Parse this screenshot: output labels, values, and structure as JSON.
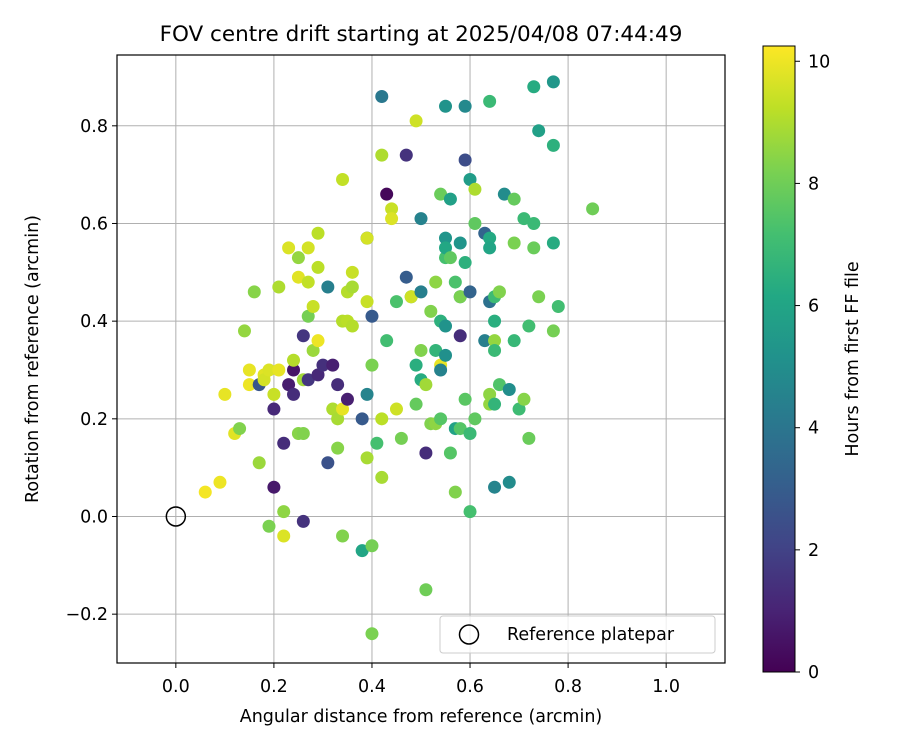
{
  "chart_data": {
    "type": "scatter",
    "title": "FOV centre drift starting at 2025/04/08 07:44:49",
    "xlabel": "Angular distance from reference (arcmin)",
    "ylabel": "Rotation from reference (arcmin)",
    "xlim": [
      -0.12,
      1.12
    ],
    "ylim": [
      -0.3,
      0.945
    ],
    "xticks": [
      0.0,
      0.2,
      0.4,
      0.6,
      0.8,
      1.0
    ],
    "xtick_labels": [
      "0.0",
      "0.2",
      "0.4",
      "0.6",
      "0.8",
      "1.0"
    ],
    "yticks": [
      -0.2,
      0.0,
      0.2,
      0.4,
      0.6,
      0.8
    ],
    "ytick_labels": [
      "−0.2",
      "0.0",
      "0.2",
      "0.4",
      "0.6",
      "0.8"
    ],
    "grid": true,
    "colormap": "viridis",
    "colorbar": {
      "label": "Hours from first FF file",
      "range": [
        0,
        10.25
      ],
      "ticks": [
        0,
        2,
        4,
        6,
        8,
        10
      ],
      "tick_labels": [
        "0",
        "2",
        "4",
        "6",
        "8",
        "10"
      ]
    },
    "legend": {
      "position": "lower-right",
      "label": "Reference platepar"
    },
    "reference_point": {
      "x": 0.0,
      "y": 0.0
    },
    "points": [
      {
        "x": 0.06,
        "y": 0.05,
        "h": 10.1
      },
      {
        "x": 0.09,
        "y": 0.07,
        "h": 10.0
      },
      {
        "x": 0.1,
        "y": 0.25,
        "h": 9.9
      },
      {
        "x": 0.12,
        "y": 0.17,
        "h": 9.8
      },
      {
        "x": 0.13,
        "y": 0.18,
        "h": 8.3
      },
      {
        "x": 0.14,
        "y": 0.38,
        "h": 8.6
      },
      {
        "x": 0.15,
        "y": 0.27,
        "h": 10.0
      },
      {
        "x": 0.15,
        "y": 0.3,
        "h": 9.9
      },
      {
        "x": 0.16,
        "y": 0.46,
        "h": 8.4
      },
      {
        "x": 0.17,
        "y": 0.11,
        "h": 8.7
      },
      {
        "x": 0.17,
        "y": 0.27,
        "h": 2.7
      },
      {
        "x": 0.18,
        "y": 0.29,
        "h": 9.8
      },
      {
        "x": 0.18,
        "y": 0.28,
        "h": 9.6
      },
      {
        "x": 0.19,
        "y": -0.02,
        "h": 8.2
      },
      {
        "x": 0.19,
        "y": 0.3,
        "h": 9.7
      },
      {
        "x": 0.2,
        "y": 0.22,
        "h": 1.2
      },
      {
        "x": 0.2,
        "y": 0.06,
        "h": 0.7
      },
      {
        "x": 0.2,
        "y": 0.25,
        "h": 9.4
      },
      {
        "x": 0.21,
        "y": 0.47,
        "h": 9.0
      },
      {
        "x": 0.21,
        "y": 0.3,
        "h": 9.9
      },
      {
        "x": 0.22,
        "y": 0.01,
        "h": 8.5
      },
      {
        "x": 0.22,
        "y": -0.04,
        "h": 9.7
      },
      {
        "x": 0.22,
        "y": 0.15,
        "h": 1.3
      },
      {
        "x": 0.23,
        "y": 0.27,
        "h": 0.8
      },
      {
        "x": 0.23,
        "y": 0.55,
        "h": 9.7
      },
      {
        "x": 0.24,
        "y": 0.3,
        "h": 0.6
      },
      {
        "x": 0.24,
        "y": 0.25,
        "h": 1.3
      },
      {
        "x": 0.24,
        "y": 0.32,
        "h": 9.1
      },
      {
        "x": 0.25,
        "y": 0.53,
        "h": 8.6
      },
      {
        "x": 0.25,
        "y": 0.17,
        "h": 8.4
      },
      {
        "x": 0.25,
        "y": 0.49,
        "h": 9.8
      },
      {
        "x": 0.26,
        "y": 0.28,
        "h": 8.8
      },
      {
        "x": 0.26,
        "y": 0.37,
        "h": 1.6
      },
      {
        "x": 0.26,
        "y": 0.17,
        "h": 8.3
      },
      {
        "x": 0.26,
        "y": -0.01,
        "h": 1.5
      },
      {
        "x": 0.27,
        "y": 0.28,
        "h": 1.6
      },
      {
        "x": 0.27,
        "y": 0.41,
        "h": 8.1
      },
      {
        "x": 0.27,
        "y": 0.55,
        "h": 9.6
      },
      {
        "x": 0.27,
        "y": 0.48,
        "h": 9.3
      },
      {
        "x": 0.28,
        "y": 0.34,
        "h": 8.7
      },
      {
        "x": 0.28,
        "y": 0.43,
        "h": 9.4
      },
      {
        "x": 0.29,
        "y": 0.29,
        "h": 1.2
      },
      {
        "x": 0.29,
        "y": 0.36,
        "h": 10.0
      },
      {
        "x": 0.29,
        "y": 0.58,
        "h": 9.2
      },
      {
        "x": 0.29,
        "y": 0.51,
        "h": 9.2
      },
      {
        "x": 0.3,
        "y": 0.31,
        "h": 1.4
      },
      {
        "x": 0.31,
        "y": 0.11,
        "h": 2.6
      },
      {
        "x": 0.31,
        "y": 0.47,
        "h": 4.4
      },
      {
        "x": 0.32,
        "y": 0.22,
        "h": 9.0
      },
      {
        "x": 0.32,
        "y": 0.31,
        "h": 0.9
      },
      {
        "x": 0.33,
        "y": 0.2,
        "h": 8.9
      },
      {
        "x": 0.33,
        "y": 0.27,
        "h": 1.3
      },
      {
        "x": 0.33,
        "y": 0.14,
        "h": 8.4
      },
      {
        "x": 0.34,
        "y": 0.4,
        "h": 9.1
      },
      {
        "x": 0.34,
        "y": 0.22,
        "h": 9.9
      },
      {
        "x": 0.34,
        "y": -0.04,
        "h": 8.3
      },
      {
        "x": 0.34,
        "y": 0.69,
        "h": 9.3
      },
      {
        "x": 0.35,
        "y": 0.46,
        "h": 9.1
      },
      {
        "x": 0.35,
        "y": 0.24,
        "h": 0.9
      },
      {
        "x": 0.35,
        "y": 0.4,
        "h": 9.2
      },
      {
        "x": 0.36,
        "y": 0.47,
        "h": 8.9
      },
      {
        "x": 0.36,
        "y": 0.5,
        "h": 9.4
      },
      {
        "x": 0.36,
        "y": 0.39,
        "h": 9.1
      },
      {
        "x": 0.38,
        "y": 0.2,
        "h": 2.9
      },
      {
        "x": 0.38,
        "y": -0.07,
        "h": 6.0
      },
      {
        "x": 0.39,
        "y": 0.12,
        "h": 8.9
      },
      {
        "x": 0.39,
        "y": 0.44,
        "h": 9.4
      },
      {
        "x": 0.39,
        "y": 0.25,
        "h": 4.6
      },
      {
        "x": 0.39,
        "y": 0.57,
        "h": 3.8
      },
      {
        "x": 0.39,
        "y": 0.57,
        "h": 9.6
      },
      {
        "x": 0.4,
        "y": -0.06,
        "h": 8.1
      },
      {
        "x": 0.4,
        "y": -0.24,
        "h": 8.2
      },
      {
        "x": 0.4,
        "y": 0.31,
        "h": 8.2
      },
      {
        "x": 0.4,
        "y": 0.41,
        "h": 2.9
      },
      {
        "x": 0.41,
        "y": 0.15,
        "h": 7.2
      },
      {
        "x": 0.42,
        "y": 0.86,
        "h": 4.1
      },
      {
        "x": 0.42,
        "y": 0.74,
        "h": 9.0
      },
      {
        "x": 0.42,
        "y": 0.08,
        "h": 8.9
      },
      {
        "x": 0.42,
        "y": 0.2,
        "h": 9.2
      },
      {
        "x": 0.43,
        "y": 0.36,
        "h": 7.1
      },
      {
        "x": 0.43,
        "y": 0.66,
        "h": 0.2
      },
      {
        "x": 0.44,
        "y": 0.63,
        "h": 9.4
      },
      {
        "x": 0.44,
        "y": 0.61,
        "h": 9.7
      },
      {
        "x": 0.45,
        "y": 0.44,
        "h": 7.3
      },
      {
        "x": 0.45,
        "y": 0.22,
        "h": 9.5
      },
      {
        "x": 0.46,
        "y": 0.16,
        "h": 8.1
      },
      {
        "x": 0.47,
        "y": 0.74,
        "h": 1.5
      },
      {
        "x": 0.47,
        "y": 0.49,
        "h": 3.0
      },
      {
        "x": 0.48,
        "y": 0.45,
        "h": 6.8
      },
      {
        "x": 0.48,
        "y": 0.45,
        "h": 9.5
      },
      {
        "x": 0.49,
        "y": 0.23,
        "h": 7.8
      },
      {
        "x": 0.49,
        "y": 0.31,
        "h": 6.4
      },
      {
        "x": 0.49,
        "y": 0.81,
        "h": 9.5
      },
      {
        "x": 0.5,
        "y": 0.34,
        "h": 8.3
      },
      {
        "x": 0.5,
        "y": 0.61,
        "h": 4.5
      },
      {
        "x": 0.5,
        "y": 0.46,
        "h": 4.4
      },
      {
        "x": 0.5,
        "y": 0.28,
        "h": 6.3
      },
      {
        "x": 0.51,
        "y": 0.27,
        "h": 8.8
      },
      {
        "x": 0.51,
        "y": 0.13,
        "h": 1.3
      },
      {
        "x": 0.51,
        "y": -0.15,
        "h": 8.0
      },
      {
        "x": 0.52,
        "y": 0.42,
        "h": 8.3
      },
      {
        "x": 0.52,
        "y": 0.19,
        "h": 8.3
      },
      {
        "x": 0.53,
        "y": 0.19,
        "h": 8.5
      },
      {
        "x": 0.53,
        "y": 0.34,
        "h": 6.7
      },
      {
        "x": 0.53,
        "y": 0.48,
        "h": 8.5
      },
      {
        "x": 0.54,
        "y": 0.2,
        "h": 7.5
      },
      {
        "x": 0.54,
        "y": 0.31,
        "h": 9.9
      },
      {
        "x": 0.54,
        "y": 0.4,
        "h": 6.5
      },
      {
        "x": 0.54,
        "y": 0.66,
        "h": 7.9
      },
      {
        "x": 0.54,
        "y": 0.3,
        "h": 4.5
      },
      {
        "x": 0.55,
        "y": 0.84,
        "h": 5.2
      },
      {
        "x": 0.55,
        "y": 0.57,
        "h": 5.3
      },
      {
        "x": 0.55,
        "y": 0.39,
        "h": 5.2
      },
      {
        "x": 0.55,
        "y": 0.53,
        "h": 7.2
      },
      {
        "x": 0.55,
        "y": 0.33,
        "h": 5.1
      },
      {
        "x": 0.55,
        "y": 0.55,
        "h": 6.1
      },
      {
        "x": 0.56,
        "y": 0.65,
        "h": 5.8
      },
      {
        "x": 0.56,
        "y": 0.53,
        "h": 7.7
      },
      {
        "x": 0.56,
        "y": 0.13,
        "h": 7.5
      },
      {
        "x": 0.57,
        "y": 0.48,
        "h": 7.3
      },
      {
        "x": 0.57,
        "y": 0.05,
        "h": 8.3
      },
      {
        "x": 0.57,
        "y": 0.18,
        "h": 5.9
      },
      {
        "x": 0.58,
        "y": 0.56,
        "h": 5.3
      },
      {
        "x": 0.58,
        "y": 0.45,
        "h": 5.2
      },
      {
        "x": 0.58,
        "y": 0.37,
        "h": 1.3
      },
      {
        "x": 0.58,
        "y": 0.18,
        "h": 7.5
      },
      {
        "x": 0.58,
        "y": 0.45,
        "h": 8.2
      },
      {
        "x": 0.59,
        "y": 0.84,
        "h": 4.8
      },
      {
        "x": 0.59,
        "y": 0.52,
        "h": 6.5
      },
      {
        "x": 0.59,
        "y": 0.24,
        "h": 7.6
      },
      {
        "x": 0.59,
        "y": 0.73,
        "h": 2.4
      },
      {
        "x": 0.6,
        "y": 0.46,
        "h": 3.3
      },
      {
        "x": 0.6,
        "y": 0.01,
        "h": 7.2
      },
      {
        "x": 0.6,
        "y": 0.69,
        "h": 5.6
      },
      {
        "x": 0.6,
        "y": 0.17,
        "h": 6.9
      },
      {
        "x": 0.61,
        "y": 0.6,
        "h": 7.7
      },
      {
        "x": 0.61,
        "y": 0.67,
        "h": 9.0
      },
      {
        "x": 0.61,
        "y": 0.2,
        "h": 7.7
      },
      {
        "x": 0.63,
        "y": 0.58,
        "h": 3.3
      },
      {
        "x": 0.63,
        "y": 0.36,
        "h": 4.4
      },
      {
        "x": 0.64,
        "y": 0.85,
        "h": 6.9
      },
      {
        "x": 0.64,
        "y": 0.44,
        "h": 3.8
      },
      {
        "x": 0.64,
        "y": 0.57,
        "h": 6.2
      },
      {
        "x": 0.64,
        "y": 0.55,
        "h": 6.0
      },
      {
        "x": 0.64,
        "y": 0.23,
        "h": 8.6
      },
      {
        "x": 0.64,
        "y": 0.25,
        "h": 8.5
      },
      {
        "x": 0.65,
        "y": 0.06,
        "h": 4.6
      },
      {
        "x": 0.65,
        "y": 0.4,
        "h": 6.4
      },
      {
        "x": 0.65,
        "y": 0.23,
        "h": 6.7
      },
      {
        "x": 0.65,
        "y": 0.36,
        "h": 8.6
      },
      {
        "x": 0.65,
        "y": 0.45,
        "h": 7.0
      },
      {
        "x": 0.65,
        "y": 0.34,
        "h": 6.9
      },
      {
        "x": 0.66,
        "y": 0.27,
        "h": 7.4
      },
      {
        "x": 0.66,
        "y": 0.46,
        "h": 8.3
      },
      {
        "x": 0.67,
        "y": 0.66,
        "h": 4.9
      },
      {
        "x": 0.68,
        "y": 0.26,
        "h": 5.0
      },
      {
        "x": 0.68,
        "y": 0.07,
        "h": 4.9
      },
      {
        "x": 0.69,
        "y": 0.65,
        "h": 7.8
      },
      {
        "x": 0.69,
        "y": 0.56,
        "h": 8.2
      },
      {
        "x": 0.69,
        "y": 0.36,
        "h": 6.8
      },
      {
        "x": 0.7,
        "y": 0.22,
        "h": 7.0
      },
      {
        "x": 0.71,
        "y": 0.24,
        "h": 8.4
      },
      {
        "x": 0.71,
        "y": 0.61,
        "h": 6.9
      },
      {
        "x": 0.72,
        "y": 0.39,
        "h": 7.1
      },
      {
        "x": 0.72,
        "y": 0.16,
        "h": 7.9
      },
      {
        "x": 0.73,
        "y": 0.55,
        "h": 7.9
      },
      {
        "x": 0.73,
        "y": 0.88,
        "h": 6.3
      },
      {
        "x": 0.73,
        "y": 0.6,
        "h": 6.9
      },
      {
        "x": 0.74,
        "y": 0.79,
        "h": 5.8
      },
      {
        "x": 0.74,
        "y": 0.45,
        "h": 8.2
      },
      {
        "x": 0.77,
        "y": 0.76,
        "h": 6.5
      },
      {
        "x": 0.77,
        "y": 0.89,
        "h": 5.4
      },
      {
        "x": 0.77,
        "y": 0.56,
        "h": 6.3
      },
      {
        "x": 0.77,
        "y": 0.38,
        "h": 8.1
      },
      {
        "x": 0.78,
        "y": 0.43,
        "h": 7.1
      },
      {
        "x": 0.85,
        "y": 0.63,
        "h": 8.0
      }
    ]
  }
}
